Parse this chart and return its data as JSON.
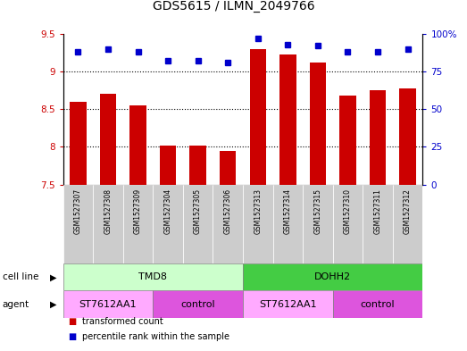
{
  "title": "GDS5615 / ILMN_2049766",
  "samples": [
    "GSM1527307",
    "GSM1527308",
    "GSM1527309",
    "GSM1527304",
    "GSM1527305",
    "GSM1527306",
    "GSM1527313",
    "GSM1527314",
    "GSM1527315",
    "GSM1527310",
    "GSM1527311",
    "GSM1527312"
  ],
  "transformed_counts": [
    8.6,
    8.7,
    8.55,
    8.02,
    8.02,
    7.95,
    9.3,
    9.22,
    9.12,
    8.68,
    8.75,
    8.77
  ],
  "percentile_ranks": [
    88,
    90,
    88,
    82,
    82,
    81,
    97,
    93,
    92,
    88,
    88,
    90
  ],
  "cell_lines": [
    {
      "label": "TMD8",
      "start": 0,
      "end": 6,
      "color": "#ccffcc"
    },
    {
      "label": "DOHH2",
      "start": 6,
      "end": 12,
      "color": "#44cc44"
    }
  ],
  "agents": [
    {
      "label": "ST7612AA1",
      "start": 0,
      "end": 3,
      "color": "#ffaaff"
    },
    {
      "label": "control",
      "start": 3,
      "end": 6,
      "color": "#dd55dd"
    },
    {
      "label": "ST7612AA1",
      "start": 6,
      "end": 9,
      "color": "#ffaaff"
    },
    {
      "label": "control",
      "start": 9,
      "end": 12,
      "color": "#dd55dd"
    }
  ],
  "ylim_left": [
    7.5,
    9.5
  ],
  "ylim_right": [
    0,
    100
  ],
  "yticks_left": [
    7.5,
    8.0,
    8.5,
    9.0,
    9.5
  ],
  "ytick_labels_left": [
    "7.5",
    "8",
    "8.5",
    "9",
    "9.5"
  ],
  "yticks_right": [
    0,
    25,
    50,
    75,
    100
  ],
  "ytick_labels_right": [
    "0",
    "25",
    "50",
    "75",
    "100%"
  ],
  "bar_color": "#cc0000",
  "dot_color": "#0000cc",
  "grid_color": "#000000",
  "bg_color": "#ffffff",
  "plot_bg_color": "#ffffff",
  "xticklabel_bg": "#cccccc",
  "legend_items": [
    {
      "label": "transformed count",
      "color": "#cc0000"
    },
    {
      "label": "percentile rank within the sample",
      "color": "#0000cc"
    }
  ],
  "cell_line_label": "cell line",
  "agent_label": "agent"
}
